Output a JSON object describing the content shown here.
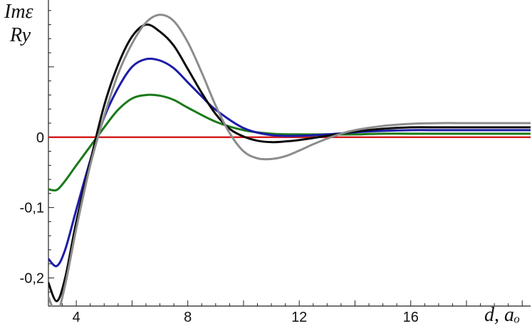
{
  "chart_data": {
    "type": "line",
    "title": "",
    "ylabel_line1": "Imε",
    "ylabel_line2": "Ry",
    "xlabel": "d, aₒ",
    "xlim": [
      3,
      20.3
    ],
    "ylim": [
      -0.24,
      0.195
    ],
    "x_ticks": [
      {
        "value": 4,
        "label": "4"
      },
      {
        "value": 8,
        "label": "8"
      },
      {
        "value": 12,
        "label": "12"
      },
      {
        "value": 16,
        "label": "16"
      }
    ],
    "y_ticks": [
      {
        "value": 0,
        "label": "0"
      },
      {
        "value": -0.1,
        "label": "-0,1"
      },
      {
        "value": -0.2,
        "label": "-0,2"
      }
    ],
    "grid": false,
    "legend": "none",
    "series": [
      {
        "color": "#d42020",
        "x": [
          3,
          20.3
        ],
        "y": [
          0,
          0
        ]
      },
      {
        "color": "#1a7a1a",
        "x": [
          3,
          3.3,
          3.6,
          4,
          4.5,
          5,
          5.5,
          6,
          6.5,
          7,
          7.5,
          8,
          9,
          10,
          11,
          12,
          13,
          14,
          15,
          16,
          17,
          18,
          19,
          20.3
        ],
        "y": [
          -0.074,
          -0.075,
          -0.062,
          -0.04,
          -0.013,
          0.014,
          0.039,
          0.055,
          0.06,
          0.059,
          0.053,
          0.042,
          0.022,
          0.01,
          0.005,
          0.004,
          0.004,
          0.004,
          0.005,
          0.005,
          0.005,
          0.005,
          0.005,
          0.005
        ]
      },
      {
        "color": "#1c1caa",
        "x": [
          3,
          3.3,
          3.6,
          4,
          4.5,
          5,
          5.5,
          6,
          6.5,
          7,
          7.5,
          8,
          8.5,
          9,
          10,
          11,
          12,
          13,
          14,
          15,
          16,
          17,
          18,
          19,
          20.3
        ],
        "y": [
          -0.173,
          -0.183,
          -0.16,
          -0.103,
          -0.033,
          0.028,
          0.07,
          0.1,
          0.111,
          0.109,
          0.098,
          0.078,
          0.058,
          0.039,
          0.013,
          0.003,
          0.002,
          0.004,
          0.007,
          0.009,
          0.01,
          0.01,
          0.01,
          0.01,
          0.01
        ]
      },
      {
        "color": "#0a0a0a",
        "x": [
          3,
          3.3,
          3.6,
          4,
          4.5,
          5,
          5.5,
          6,
          6.5,
          7,
          7.5,
          8,
          8.5,
          9,
          9.5,
          10,
          10.5,
          11,
          11.5,
          12,
          13,
          14,
          15,
          16,
          17,
          18,
          19,
          20.3
        ],
        "y": [
          -0.207,
          -0.233,
          -0.2,
          -0.12,
          -0.035,
          0.045,
          0.103,
          0.143,
          0.16,
          0.15,
          0.13,
          0.097,
          0.063,
          0.033,
          0.012,
          0.001,
          -0.005,
          -0.007,
          -0.006,
          -0.004,
          0.002,
          0.008,
          0.012,
          0.014,
          0.014,
          0.014,
          0.014,
          0.014
        ]
      },
      {
        "color": "#8c8c8c",
        "x": [
          3,
          3.3,
          3.6,
          4,
          4.5,
          5,
          5.5,
          6,
          6.5,
          7,
          7.5,
          8,
          8.5,
          9,
          9.5,
          10,
          10.5,
          11,
          11.5,
          12,
          12.5,
          13,
          13.5,
          14,
          15,
          16,
          17,
          18,
          19,
          20.3
        ],
        "y": [
          -0.227,
          -0.25,
          -0.21,
          -0.13,
          -0.04,
          0.03,
          0.09,
          0.133,
          0.163,
          0.174,
          0.165,
          0.135,
          0.092,
          0.045,
          0.006,
          -0.02,
          -0.03,
          -0.031,
          -0.027,
          -0.019,
          -0.01,
          -0.002,
          0.005,
          0.01,
          0.016,
          0.019,
          0.02,
          0.02,
          0.02,
          0.02
        ]
      }
    ]
  }
}
